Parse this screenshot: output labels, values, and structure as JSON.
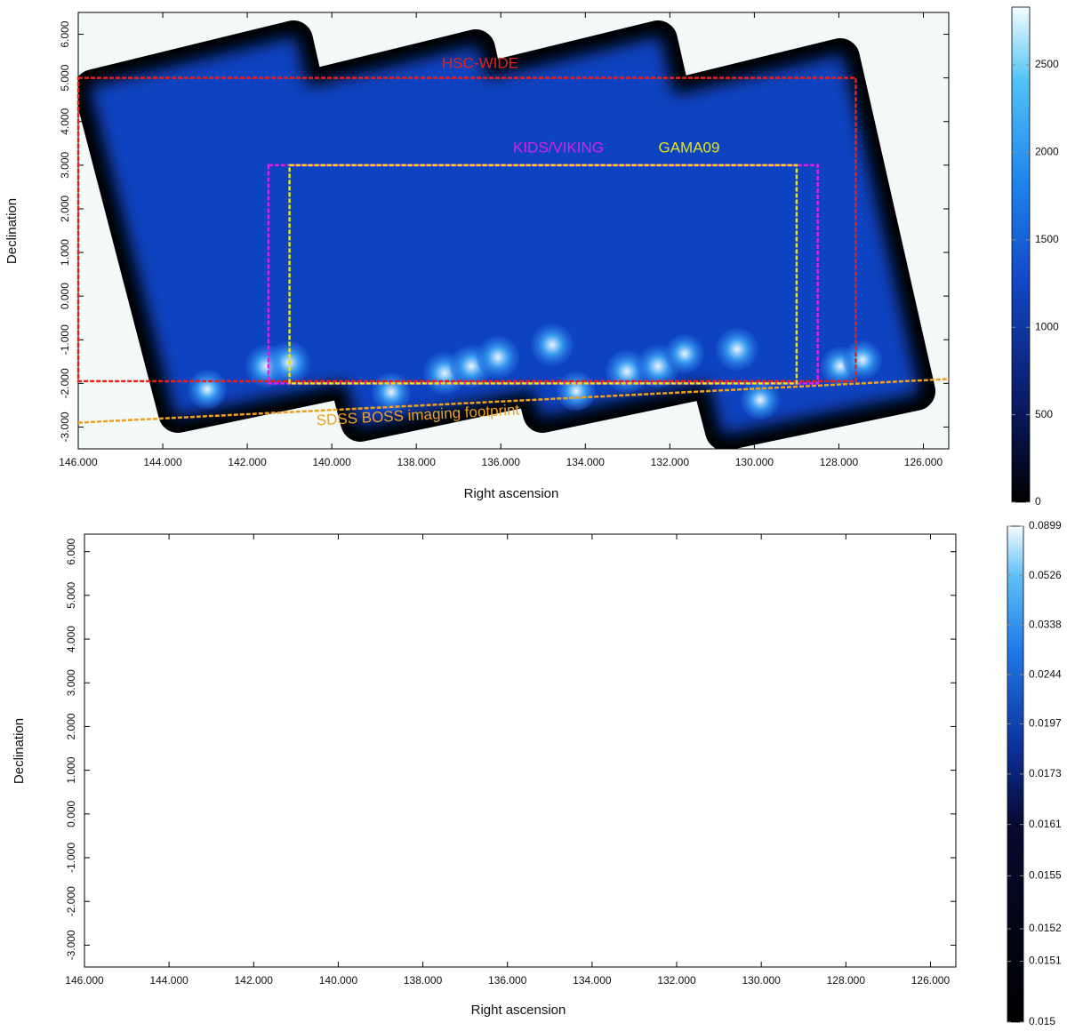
{
  "chart_data": [
    {
      "type": "heatmap",
      "x_label": "Right ascension",
      "y_label": "Declination",
      "xlim": [
        146.0,
        125.4
      ],
      "ylim": [
        -3.5,
        6.5
      ],
      "xticks": [
        {
          "value": 146,
          "label": "146.000"
        },
        {
          "value": 144,
          "label": "144.000"
        },
        {
          "value": 142,
          "label": "142.000"
        },
        {
          "value": 140,
          "label": "140.000"
        },
        {
          "value": 138,
          "label": "138.000"
        },
        {
          "value": 136,
          "label": "136.000"
        },
        {
          "value": 134,
          "label": "134.000"
        },
        {
          "value": 132,
          "label": "132.000"
        },
        {
          "value": 130,
          "label": "130.000"
        },
        {
          "value": 128,
          "label": "128.000"
        },
        {
          "value": 126,
          "label": "126.000"
        }
      ],
      "yticks": [
        {
          "value": 6,
          "label": "6.000"
        },
        {
          "value": 5,
          "label": "5.000"
        },
        {
          "value": 4,
          "label": "4.000"
        },
        {
          "value": 3,
          "label": "3.000"
        },
        {
          "value": 2,
          "label": "2.000"
        },
        {
          "value": 1,
          "label": "1.000"
        },
        {
          "value": 0,
          "label": "0.000"
        },
        {
          "value": -1,
          "label": "-1.000"
        },
        {
          "value": -2,
          "label": "-2.000"
        },
        {
          "value": -3,
          "label": "-3.000"
        }
      ],
      "colorbar": {
        "scale": "linear",
        "lim": [
          0,
          2830
        ],
        "ticks": [
          0,
          500,
          1000,
          1500,
          2000,
          2500
        ]
      },
      "regions": [
        {
          "label": "HSC-WIDE",
          "shape": "rect",
          "color": "#e8201c",
          "ra": [
            146.0,
            127.6
          ],
          "dec": [
            5.0,
            -1.95
          ]
        },
        {
          "label": "KIDS/VIKING",
          "shape": "rect",
          "color": "#e21ee2",
          "ra": [
            141.5,
            128.5
          ],
          "dec": [
            3.0,
            -2.0
          ]
        },
        {
          "label": "GAMA09",
          "shape": "rect",
          "color": "#e6e21e",
          "ra": [
            141.0,
            129.0
          ],
          "dec": [
            3.0,
            -2.0
          ]
        },
        {
          "label": "SDSS BOSS imaging footprint",
          "shape": "line",
          "color": "#f0a020",
          "ra": [
            146.0,
            125.4
          ],
          "dec": [
            -2.9,
            -1.9
          ]
        }
      ]
    },
    {
      "type": "heatmap",
      "x_label": "Right ascension",
      "y_label": "Declination",
      "xlim": [
        146.0,
        125.4
      ],
      "ylim": [
        -3.5,
        6.4
      ],
      "xticks": [
        {
          "value": 146,
          "label": "146.000"
        },
        {
          "value": 144,
          "label": "144.000"
        },
        {
          "value": 142,
          "label": "142.000"
        },
        {
          "value": 140,
          "label": "140.000"
        },
        {
          "value": 138,
          "label": "138.000"
        },
        {
          "value": 136,
          "label": "136.000"
        },
        {
          "value": 134,
          "label": "134.000"
        },
        {
          "value": 132,
          "label": "132.000"
        },
        {
          "value": 130,
          "label": "130.000"
        },
        {
          "value": 128,
          "label": "128.000"
        },
        {
          "value": 126,
          "label": "126.000"
        }
      ],
      "yticks": [
        {
          "value": 6,
          "label": "6.000"
        },
        {
          "value": 5,
          "label": "5.000"
        },
        {
          "value": 4,
          "label": "4.000"
        },
        {
          "value": 3,
          "label": "3.000"
        },
        {
          "value": 2,
          "label": "2.000"
        },
        {
          "value": 1,
          "label": "1.000"
        },
        {
          "value": 0,
          "label": "0.000"
        },
        {
          "value": -1,
          "label": "-1.000"
        },
        {
          "value": -2,
          "label": "-2.000"
        },
        {
          "value": -3,
          "label": "-3.000"
        }
      ],
      "colorbar": {
        "scale": "exponential",
        "lim": [
          0.015,
          0.0899
        ],
        "ticks": [
          0.015,
          0.0151,
          0.0152,
          0.0155,
          0.0161,
          0.0173,
          0.0197,
          0.0244,
          0.0338,
          0.0526,
          0.0899
        ]
      }
    }
  ]
}
